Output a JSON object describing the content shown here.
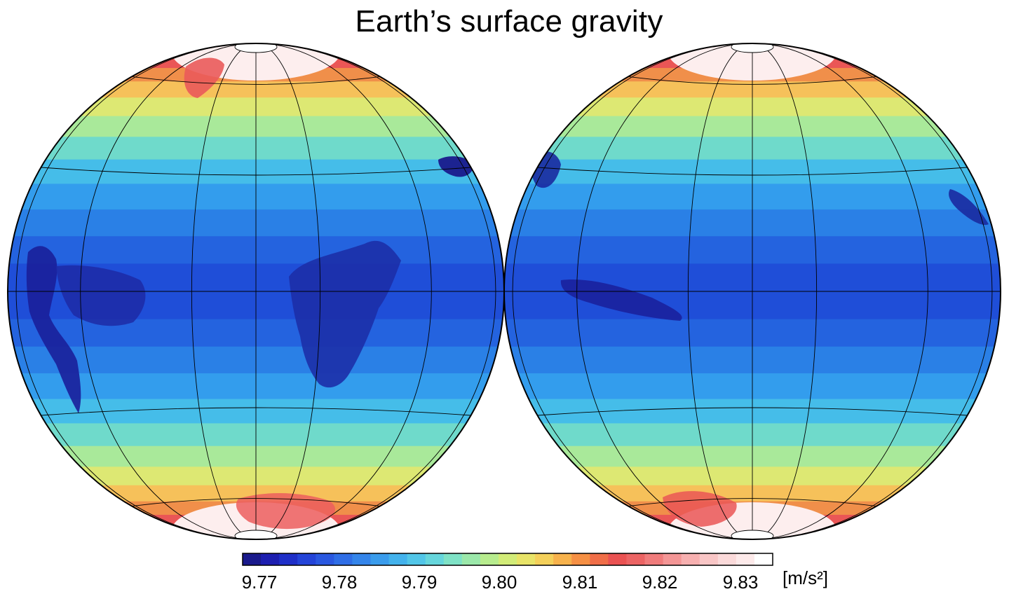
{
  "title": "Earth’s surface gravity",
  "colorbar": {
    "tick_labels": [
      "9.77",
      "9.78",
      "9.79",
      "9.80",
      "9.81",
      "9.82",
      "9.83"
    ],
    "unit_label": "[m/s²]",
    "colors": [
      "#1a1a8c",
      "#1d1fb0",
      "#1f2fc8",
      "#2444d8",
      "#2a58e0",
      "#2f6ee6",
      "#3485ea",
      "#3a9cec",
      "#43b2ec",
      "#52c6e8",
      "#66d6dc",
      "#7fe2c6",
      "#9be8aa",
      "#b7ec8e",
      "#d2ec78",
      "#e8e468",
      "#f4d05a",
      "#f7b24c",
      "#f69044",
      "#f06e48",
      "#ea5252",
      "#ec6464",
      "#f07c7c",
      "#f49696",
      "#f7b0b0",
      "#f9c6c6",
      "#fbdada",
      "#fdeaea",
      "#ffffff"
    ]
  },
  "bands": [
    "#f9d2d2",
    "#f5b5b5",
    "#ef8d8d",
    "#ea5656",
    "#f08f4a",
    "#f6c15a",
    "#dde873",
    "#a9e99a",
    "#6fdacb",
    "#45bde9",
    "#339ded",
    "#2a80e6",
    "#2463df",
    "#1f4ed8",
    "#1f4ed8",
    "#2463df",
    "#2a80e6",
    "#339ded",
    "#45bde9",
    "#6fdacb",
    "#a9e99a",
    "#dde873",
    "#f6c15a",
    "#f08f4a",
    "#ea5656",
    "#ef8d8d",
    "#f5b5b5",
    "#f9d2d2"
  ]
}
